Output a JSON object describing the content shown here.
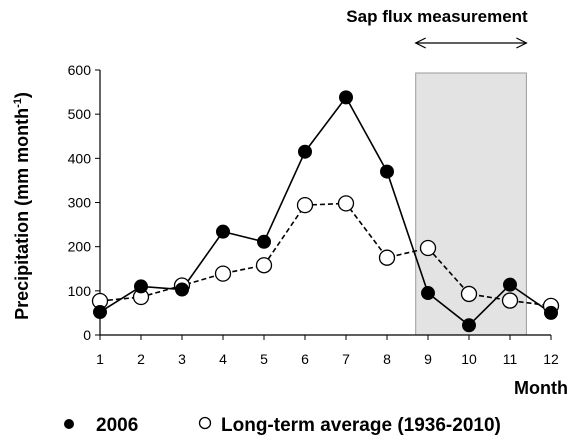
{
  "chart_data": {
    "type": "line",
    "ylabel": "Precipitation (mm month",
    "ylabel_superscript": "-1",
    "ylabel_close": ")",
    "xlabel": "Month",
    "x": [
      1,
      2,
      3,
      4,
      5,
      6,
      7,
      8,
      9,
      10,
      11,
      12
    ],
    "xlim": [
      1,
      12
    ],
    "ylim": [
      0,
      600
    ],
    "yticks": [
      0,
      100,
      200,
      300,
      400,
      500,
      600
    ],
    "grid": false,
    "legend_position": "bottom",
    "series": [
      {
        "name": "2006",
        "marker": "filled-circle",
        "line": "solid",
        "values": [
          52,
          110,
          103,
          234,
          211,
          415,
          538,
          370,
          95,
          22,
          114,
          50
        ]
      },
      {
        "name": "Long-term average (1936-2010)",
        "marker": "open-circle",
        "line": "dashed",
        "values": [
          77,
          86,
          112,
          139,
          158,
          294,
          298,
          175,
          197,
          93,
          78,
          66
        ]
      }
    ],
    "shaded_region": {
      "x_start": 8.7,
      "x_end": 11.4,
      "color": "#e3e3e3"
    },
    "annotation": {
      "text": "Sap flux measurement",
      "arrow_from_x": 8.7,
      "arrow_to_x": 11.4
    }
  }
}
